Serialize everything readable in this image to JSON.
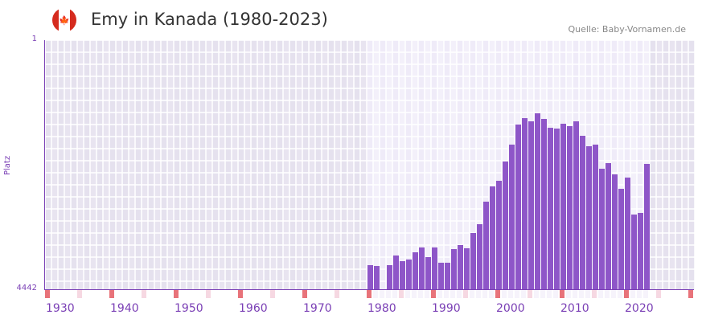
{
  "header": {
    "title": "Emy in Kanada (1980-2023)",
    "source": "Quelle: Baby-Vornamen.de",
    "flag_icon": "canada-flag-icon"
  },
  "chart_data": {
    "type": "bar",
    "title": "Emy in Kanada (1980-2023)",
    "ylabel": "Platz",
    "xlabel": "",
    "ylim": [
      1,
      4442
    ],
    "y_inverted": true,
    "y_tick_labels": [
      "1",
      "4442"
    ],
    "xlim": [
      1930,
      2030
    ],
    "x_tick_labels": [
      "1930",
      "1940",
      "1950",
      "1960",
      "1970",
      "1980",
      "1990",
      "2000",
      "2010",
      "2020"
    ],
    "x": [
      1980,
      1981,
      1982,
      1983,
      1984,
      1985,
      1986,
      1987,
      1988,
      1989,
      1990,
      1991,
      1992,
      1993,
      1994,
      1995,
      1996,
      1997,
      1998,
      1999,
      2000,
      2001,
      2002,
      2003,
      2004,
      2005,
      2006,
      2007,
      2008,
      2009,
      2010,
      2011,
      2012,
      2013,
      2014,
      2015,
      2016,
      2017,
      2018,
      2019,
      2020,
      2021,
      2022,
      2023
    ],
    "values": [
      4012,
      4027,
      null,
      4012,
      3840,
      3941,
      3912,
      3783,
      3697,
      3869,
      3697,
      3969,
      3969,
      3726,
      3654,
      3711,
      3439,
      3282,
      2880,
      2608,
      2508,
      2164,
      1863,
      1505,
      1391,
      1448,
      1305,
      1405,
      1563,
      1577,
      1491,
      1534,
      1448,
      1706,
      1892,
      1863,
      2293,
      2193,
      2394,
      2651,
      2451,
      3110,
      3081,
      2207
    ],
    "colors": {
      "bar": "#8e56c8",
      "axis": "#7a3fb5",
      "out_range": "#e5e1ee",
      "in_range": "#efebf8",
      "decade_marker": "#e8737a",
      "half_marker": "#f6d8e2"
    }
  }
}
